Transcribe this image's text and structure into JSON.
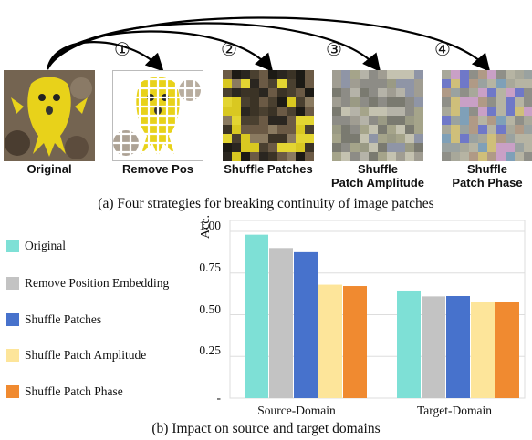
{
  "panel_a": {
    "markers": [
      "①",
      "②",
      "③",
      "④"
    ],
    "labels": {
      "original": "Original",
      "remove_pos": "Remove Pos",
      "shuffle_patches": "Shuffle Patches",
      "shuffle_amplitude_line1": "Shuffle",
      "shuffle_amplitude_line2": "Patch Amplitude",
      "shuffle_phase_line1": "Shuffle",
      "shuffle_phase_line2": "Patch Phase"
    },
    "caption": "(a) Four strategies for breaking continuity of image patches"
  },
  "panel_b": {
    "caption": "(b) Impact on source and target domains"
  },
  "chart_data": {
    "type": "bar",
    "ylabel": "Acc.",
    "ylim": [
      0,
      1.0
    ],
    "yticks": [
      "-",
      "0.25",
      "0.50",
      "0.75",
      "1.00"
    ],
    "categories": [
      "Source-Domain",
      "Target-Domain"
    ],
    "legend_position": "left",
    "series": [
      {
        "name": "Original",
        "color": "#7ee0d6",
        "values": [
          0.98,
          0.645
        ]
      },
      {
        "name": "Remove Position Embedding",
        "color": "#c3c3c3",
        "values": [
          0.9,
          0.61
        ]
      },
      {
        "name": "Shuffle Patches",
        "color": "#4772cc",
        "values": [
          0.875,
          0.612
        ]
      },
      {
        "name": "Shuffle Patch Amplitude",
        "color": "#fde59a",
        "values": [
          0.68,
          0.578
        ]
      },
      {
        "name": "Shuffle Patch Phase",
        "color": "#f08a30",
        "values": [
          0.672,
          0.578
        ]
      }
    ]
  }
}
